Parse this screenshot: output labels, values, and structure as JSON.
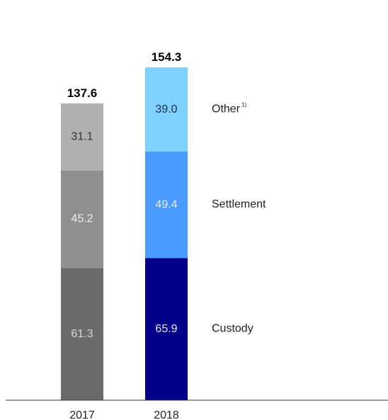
{
  "chart_data": {
    "type": "bar",
    "stacked": true,
    "categories": [
      "2017",
      "2018"
    ],
    "series": [
      {
        "name": "Custody",
        "values": [
          61.3,
          65.9
        ],
        "colors": [
          "#6b6b6b",
          "#00008b"
        ],
        "label_colors": [
          "#d9d9d9",
          "#e6e6f0"
        ]
      },
      {
        "name": "Settlement",
        "values": [
          45.2,
          49.4
        ],
        "colors": [
          "#8f8f8f",
          "#4a9aff"
        ],
        "label_colors": [
          "#eeeeee",
          "#e6f0ff"
        ]
      },
      {
        "name": "Other",
        "values": [
          31.1,
          39.0
        ],
        "colors": [
          "#b0b0b0",
          "#7fcfff"
        ],
        "label_colors": [
          "#333333",
          "#1a3050"
        ]
      }
    ],
    "totals": [
      "137.6",
      "154.3"
    ],
    "segment_labels": [
      [
        "61.3",
        "45.2",
        "31.1"
      ],
      [
        "65.9",
        "49.4",
        "39.0"
      ]
    ],
    "legend": [
      {
        "text": "Other",
        "sup": "1)"
      },
      {
        "text": "Settlement",
        "sup": ""
      },
      {
        "text": "Custody",
        "sup": ""
      }
    ],
    "legend_placement": "right of last bar",
    "grid": false,
    "ylim": [
      0,
      160
    ]
  }
}
